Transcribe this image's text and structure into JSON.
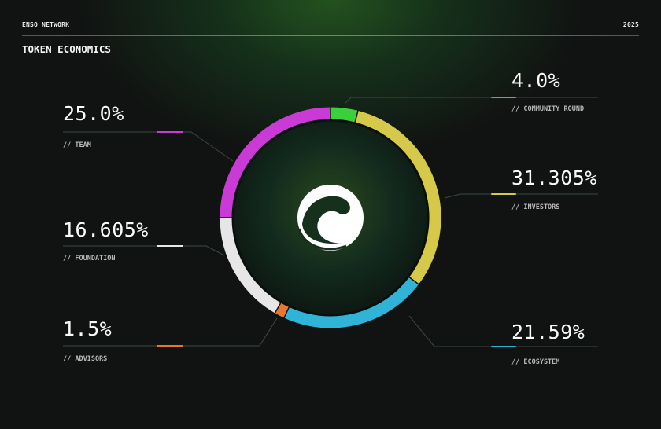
{
  "header": {
    "brand": "ENSO NETWORK",
    "year": "2025",
    "title": "TOKEN ECONOMICS"
  },
  "chart_data": {
    "type": "pie",
    "variant": "donut",
    "start": "top, clockwise",
    "slices": [
      {
        "label": "// COMMUNITY ROUND",
        "value": 4.0,
        "display": "4.0%",
        "color": "#3ccf3c"
      },
      {
        "label": "// INVESTORS",
        "value": 31.305,
        "display": "31.305%",
        "color": "#d6c94a"
      },
      {
        "label": "// ECOSYSTEM",
        "value": 21.59,
        "display": "21.59%",
        "color": "#2fb4d8"
      },
      {
        "label": "// ADVISORS",
        "value": 1.5,
        "display": "1.5%",
        "color": "#e8772e"
      },
      {
        "label": "// FOUNDATION",
        "value": 16.605,
        "display": "16.605%",
        "color": "#e6e6e6"
      },
      {
        "label": "// TEAM",
        "value": 25.0,
        "display": "25.0%",
        "color": "#c93ad6"
      }
    ]
  }
}
